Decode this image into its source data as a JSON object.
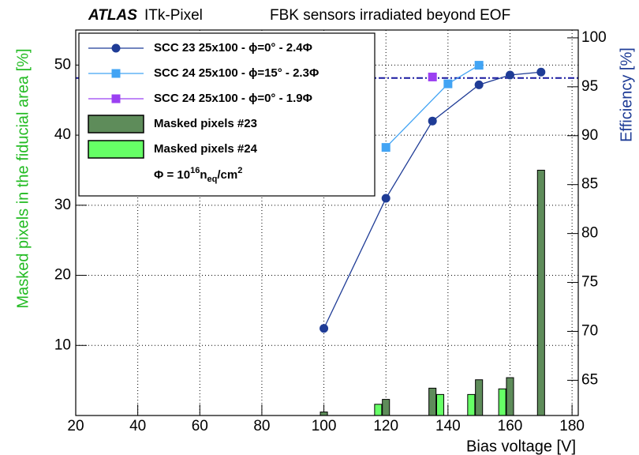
{
  "chart_data": {
    "type": "combo",
    "header": [
      "ATLAS",
      "ITk-Pixel",
      "FBK sensors irradiated beyond EOF"
    ],
    "x_label": "Bias voltage [V]",
    "y_label": "Masked pixels in the fiducial area [%]",
    "y2_label": "Efficiency [%]",
    "xlim": [
      20,
      182
    ],
    "xticks": [
      20,
      40,
      60,
      80,
      100,
      120,
      140,
      160,
      180
    ],
    "ylim": [
      0,
      55
    ],
    "yticks": [
      10,
      20,
      30,
      40,
      50
    ],
    "y2lim": [
      61.4,
      100.8
    ],
    "y2ticks": [
      65,
      70,
      75,
      80,
      85,
      90,
      95,
      100
    ],
    "grid": true,
    "reference_line": {
      "value": 95.9,
      "color": "#1a1aa0",
      "axis": "y2"
    },
    "series": [
      {
        "name": "SCC 23 25x100 - ϕ=0° - 2.4Φ",
        "type": "line",
        "axis": "y2",
        "color": "#1f3c96",
        "x": [
          100,
          120,
          135,
          150,
          160,
          170
        ],
        "values": [
          70.3,
          83.6,
          91.5,
          95.2,
          96.2,
          96.5
        ]
      },
      {
        "name": "SCC 24 25x100 - ϕ=15° - 2.3Φ",
        "type": "line",
        "axis": "y2",
        "color": "#42a4f4",
        "x": [
          120,
          140,
          150
        ],
        "values": [
          88.8,
          95.3,
          97.2
        ]
      },
      {
        "name": "SCC 24 25x100 - ϕ=0° - 1.9Φ",
        "type": "line",
        "axis": "y2",
        "color": "#9b40f2",
        "x": [
          135
        ],
        "values": [
          96.0
        ]
      },
      {
        "name": "Masked pixels #23",
        "type": "bar",
        "axis": "y",
        "color": "#5e8c5a",
        "x": [
          100,
          120,
          135,
          150,
          160,
          170
        ],
        "values": [
          0.5,
          2.3,
          3.9,
          5.1,
          5.4,
          35
        ]
      },
      {
        "name": "Masked pixels #24",
        "type": "bar",
        "axis": "y",
        "color": "#66ff66",
        "x": [
          120,
          140,
          150,
          160
        ],
        "values": [
          1.6,
          3.0,
          3.0,
          3.8
        ]
      }
    ],
    "legend_note": [
      "Φ = 10",
      "16",
      "n",
      "eq",
      "/cm",
      "2"
    ]
  }
}
